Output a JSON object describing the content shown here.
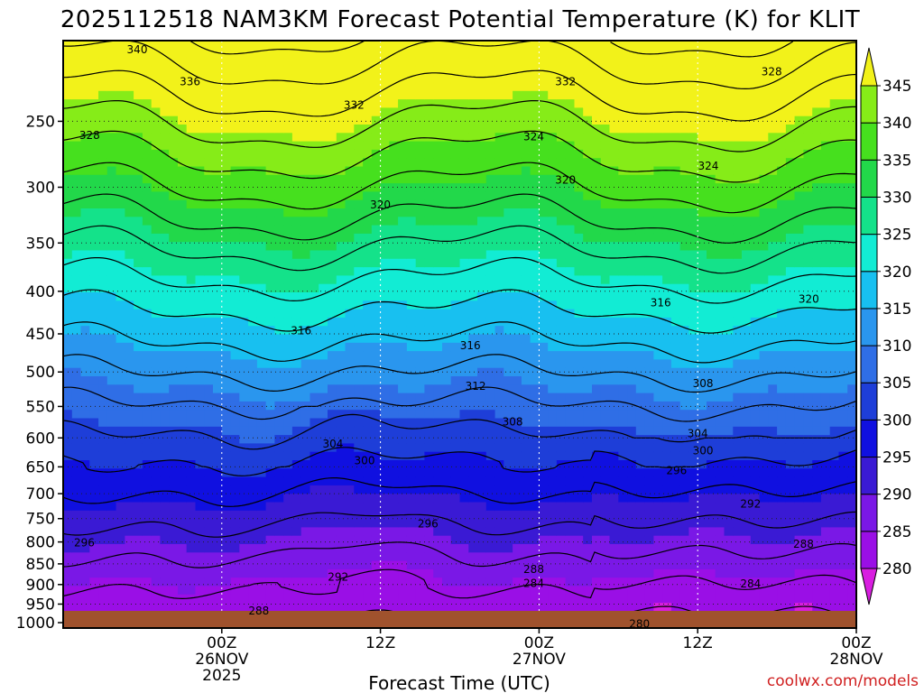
{
  "chart_data": {
    "type": "heatmap",
    "title": "2025112518 NAM3KM Forecast Potential Temperature (K) for KLIT",
    "xlabel": "Forecast Time (UTC)",
    "ylabel": "",
    "credit": "coolwx.com/models",
    "xlim_hours": [
      -15,
      60
    ],
    "x_ticks": [
      {
        "hour": 0,
        "lines": [
          "00Z",
          "26NOV",
          "2025"
        ]
      },
      {
        "hour": 15,
        "lines": [
          "12Z"
        ]
      },
      {
        "hour": 30,
        "lines": [
          "00Z",
          "27NOV"
        ]
      },
      {
        "hour": 45,
        "lines": [
          "12Z"
        ]
      },
      {
        "hour": 60,
        "lines": [
          "00Z",
          "28NOV"
        ]
      }
    ],
    "y_ticks": [
      250,
      300,
      350,
      400,
      450,
      500,
      550,
      600,
      650,
      700,
      750,
      800,
      850,
      900,
      950,
      1000
    ],
    "colorbar": {
      "levels": [
        280,
        285,
        290,
        295,
        300,
        305,
        310,
        315,
        320,
        325,
        330,
        335,
        340,
        345
      ],
      "colors": [
        "#d81ee0",
        "#9a0fe6",
        "#7a18e6",
        "#3a1ad4",
        "#1010e0",
        "#1e3ed8",
        "#2f6ee6",
        "#2a96ee",
        "#18c0f0",
        "#12ecd4",
        "#14e28a",
        "#22d84a",
        "#46e01e",
        "#86ec18",
        "#c6f01a",
        "#f2f21a"
      ],
      "tick_labels": [
        "280",
        "285",
        "290",
        "295",
        "300",
        "305",
        "310",
        "315",
        "320",
        "325",
        "330",
        "335",
        "340",
        "345"
      ]
    },
    "contour_labels": [
      {
        "text": "340",
        "hour": -8,
        "hpa": 205
      },
      {
        "text": "336",
        "hour": -3,
        "hpa": 224
      },
      {
        "text": "332",
        "hour": 12.5,
        "hpa": 239
      },
      {
        "text": "332",
        "hour": 32.5,
        "hpa": 224
      },
      {
        "text": "328",
        "hour": 52,
        "hpa": 218
      },
      {
        "text": "328",
        "hour": -12.5,
        "hpa": 260
      },
      {
        "text": "324",
        "hour": 29.5,
        "hpa": 261
      },
      {
        "text": "324",
        "hour": 46,
        "hpa": 283
      },
      {
        "text": "320",
        "hour": 32.5,
        "hpa": 294
      },
      {
        "text": "320",
        "hour": 15,
        "hpa": 315
      },
      {
        "text": "320",
        "hour": 55.5,
        "hpa": 409
      },
      {
        "text": "316",
        "hour": 41.5,
        "hpa": 413
      },
      {
        "text": "316",
        "hour": 7.5,
        "hpa": 446
      },
      {
        "text": "316",
        "hour": 23.5,
        "hpa": 465
      },
      {
        "text": "312",
        "hour": 24,
        "hpa": 520
      },
      {
        "text": "308",
        "hour": 45.5,
        "hpa": 516
      },
      {
        "text": "308",
        "hour": 27.5,
        "hpa": 574
      },
      {
        "text": "304",
        "hour": 10.5,
        "hpa": 610
      },
      {
        "text": "304",
        "hour": 45,
        "hpa": 593
      },
      {
        "text": "300",
        "hour": 13.5,
        "hpa": 639
      },
      {
        "text": "300",
        "hour": 45.5,
        "hpa": 622
      },
      {
        "text": "296",
        "hour": 43,
        "hpa": 657
      },
      {
        "text": "292",
        "hour": 50,
        "hpa": 720
      },
      {
        "text": "296",
        "hour": 19.5,
        "hpa": 761
      },
      {
        "text": "296",
        "hour": -13,
        "hpa": 802
      },
      {
        "text": "288",
        "hour": 55,
        "hpa": 805
      },
      {
        "text": "292",
        "hour": 11,
        "hpa": 881
      },
      {
        "text": "288",
        "hour": 29.5,
        "hpa": 863
      },
      {
        "text": "284",
        "hour": 29.5,
        "hpa": 897
      },
      {
        "text": "284",
        "hour": 50,
        "hpa": 898
      },
      {
        "text": "288",
        "hour": 3.5,
        "hpa": 968
      },
      {
        "text": "280",
        "hour": 39.5,
        "hpa": 1004
      }
    ]
  }
}
